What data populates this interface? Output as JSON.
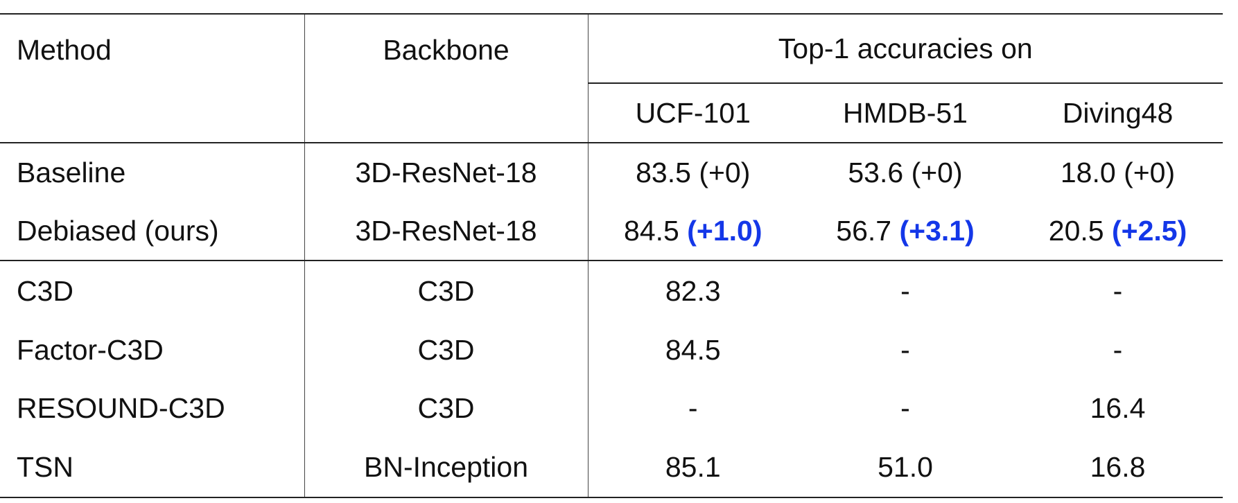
{
  "table": {
    "header": {
      "method": "Method",
      "backbone": "Backbone",
      "group": "Top-1 accuracies on",
      "datasets": [
        "UCF-101",
        "HMDB-51",
        "Diving48"
      ]
    },
    "rows": [
      {
        "method": "Baseline",
        "backbone": "3D-ResNet-18",
        "cells": [
          {
            "value": "83.5",
            "delta": "(+0)",
            "highlight": false
          },
          {
            "value": "53.6",
            "delta": "(+0)",
            "highlight": false
          },
          {
            "value": "18.0",
            "delta": "(+0)",
            "highlight": false
          }
        ]
      },
      {
        "method": "Debiased (ours)",
        "backbone": "3D-ResNet-18",
        "cells": [
          {
            "value": "84.5",
            "delta": "(+1.0)",
            "highlight": true
          },
          {
            "value": "56.7",
            "delta": "(+3.1)",
            "highlight": true
          },
          {
            "value": "20.5",
            "delta": "(+2.5)",
            "highlight": true
          }
        ]
      },
      {
        "method": "C3D",
        "backbone": "C3D",
        "cells": [
          {
            "value": "82.3",
            "delta": "",
            "highlight": false
          },
          {
            "value": "-",
            "delta": "",
            "highlight": false
          },
          {
            "value": "-",
            "delta": "",
            "highlight": false
          }
        ]
      },
      {
        "method": "Factor-C3D",
        "backbone": "C3D",
        "cells": [
          {
            "value": "84.5",
            "delta": "",
            "highlight": false
          },
          {
            "value": "-",
            "delta": "",
            "highlight": false
          },
          {
            "value": "-",
            "delta": "",
            "highlight": false
          }
        ]
      },
      {
        "method": "RESOUND-C3D",
        "backbone": "C3D",
        "cells": [
          {
            "value": "-",
            "delta": "",
            "highlight": false
          },
          {
            "value": "-",
            "delta": "",
            "highlight": false
          },
          {
            "value": "16.4",
            "delta": "",
            "highlight": false
          }
        ]
      },
      {
        "method": "TSN",
        "backbone": "BN-Inception",
        "cells": [
          {
            "value": "85.1",
            "delta": "",
            "highlight": false
          },
          {
            "value": "51.0",
            "delta": "",
            "highlight": false
          },
          {
            "value": "16.8",
            "delta": "",
            "highlight": false
          }
        ]
      }
    ],
    "colors": {
      "highlight": "#1437e8",
      "text": "#111111"
    }
  }
}
